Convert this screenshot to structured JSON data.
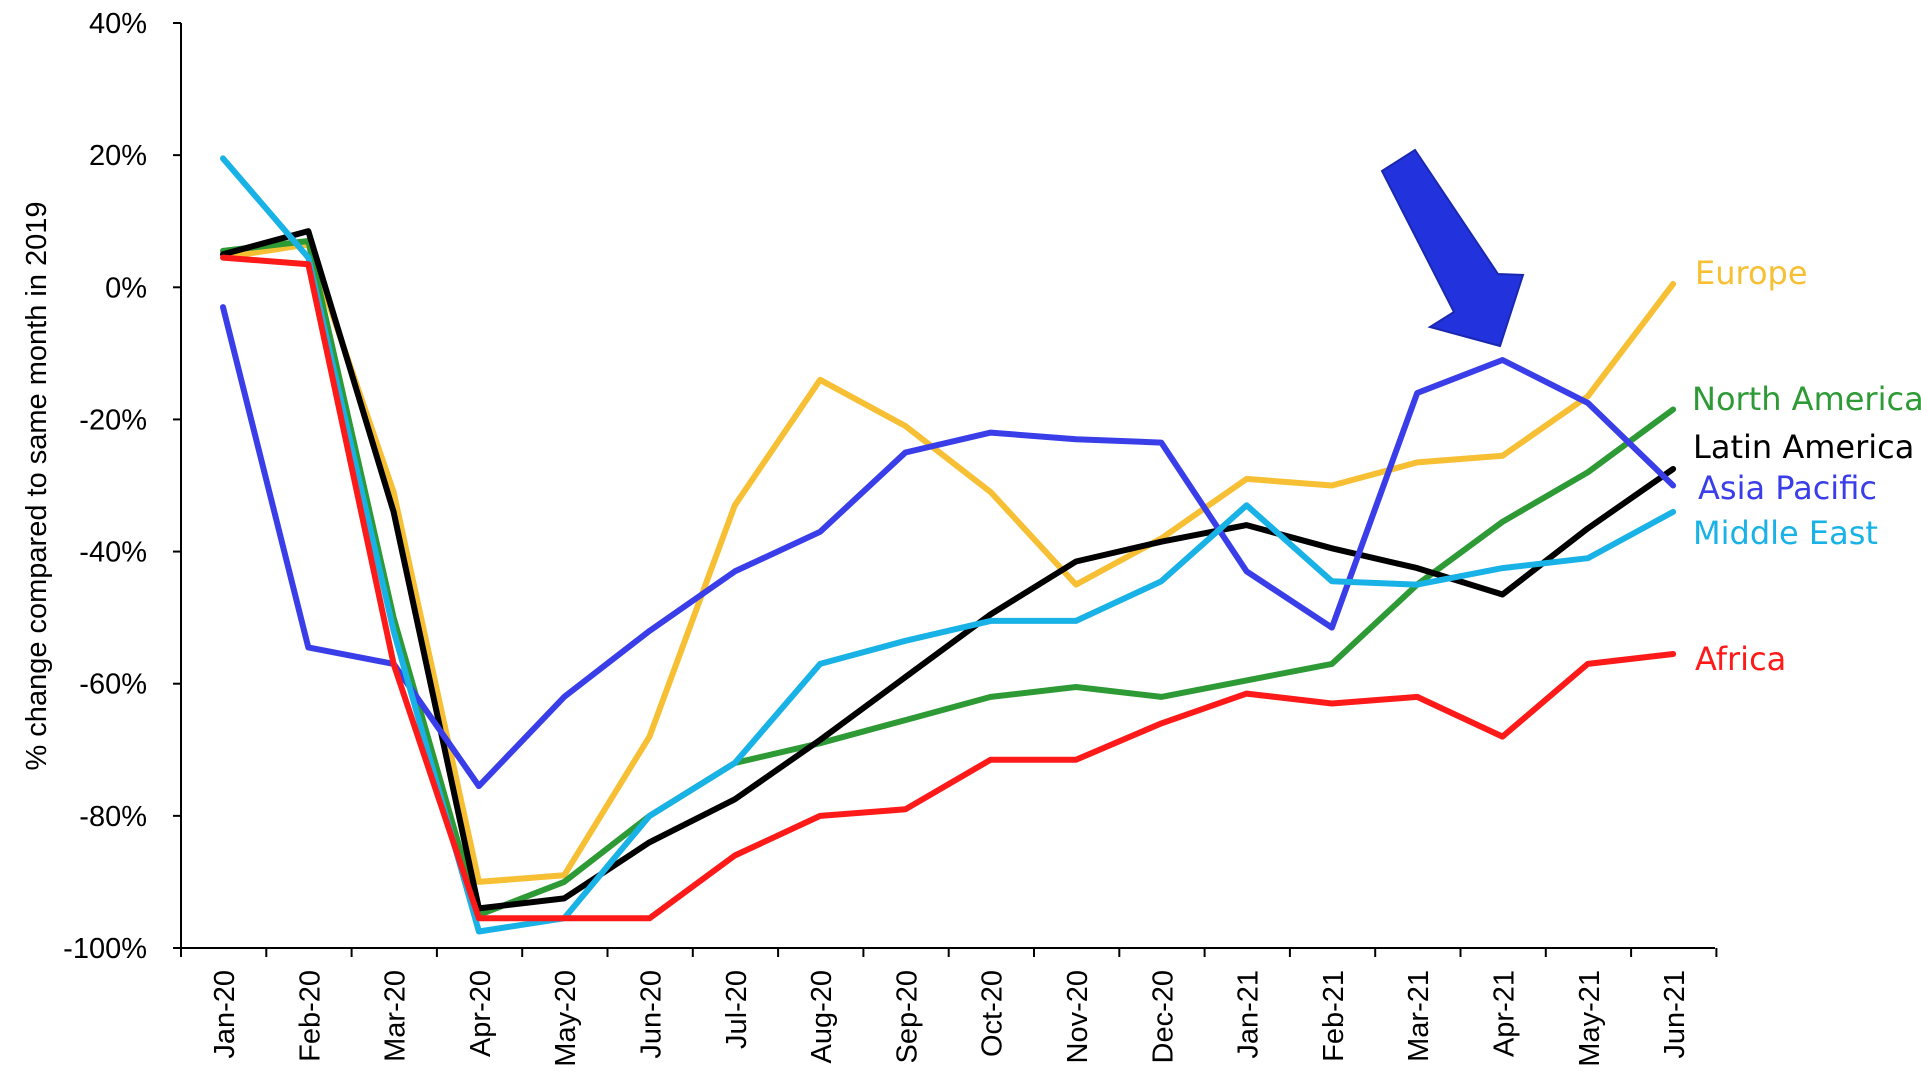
{
  "chart_data": {
    "type": "line",
    "title": "",
    "xlabel": "",
    "ylabel": "% change compared to same month in 2019",
    "ylim": [
      -100,
      40
    ],
    "y_ticks": [
      40,
      20,
      0,
      -20,
      -40,
      -60,
      -80,
      -100
    ],
    "y_tick_labels": [
      "40%",
      "20%",
      "0%",
      "-20%",
      "-40%",
      "-60%",
      "-80%",
      "-100%"
    ],
    "categories": [
      "Jan-20",
      "Feb-20",
      "Mar-20",
      "Apr-20",
      "May-20",
      "Jun-20",
      "Jul-20",
      "Aug-20",
      "Sep-20",
      "Oct-20",
      "Nov-20",
      "Dec-20",
      "Jan-21",
      "Feb-21",
      "Mar-21",
      "Apr-21",
      "May-21",
      "Jun-21"
    ],
    "grid": false,
    "legend": "direct labels at line ends",
    "annotation": {
      "type": "arrow",
      "points_to": "Asia Pacific, Apr-21",
      "color": "#2233dd"
    },
    "series": [
      {
        "name": "Europe",
        "color": "#f7c034",
        "values": [
          4.5,
          6.5,
          -31,
          -90,
          -89,
          -68,
          -33,
          -14,
          -21,
          -31,
          -45,
          -38,
          -29,
          -30,
          -26.5,
          -25.5,
          -16.5,
          0.5
        ]
      },
      {
        "name": "North America",
        "color": "#2e9a35",
        "values": [
          5.5,
          7,
          -50,
          -95,
          -90,
          -80,
          -72,
          -69,
          -65.5,
          -62,
          -60.5,
          -62,
          -59.5,
          -57,
          -45,
          -35.5,
          -28,
          -18.5
        ]
      },
      {
        "name": "Latin America",
        "color": "#000000",
        "values": [
          5,
          8.5,
          -34,
          -94,
          -92.5,
          -84,
          -77.5,
          -68.5,
          -59,
          -49.5,
          -41.5,
          -38.5,
          -36,
          -39.5,
          -42.5,
          -46.5,
          -36.5,
          -27.5
        ]
      },
      {
        "name": "Asia Pacific",
        "color": "#3a3ee8",
        "values": [
          -3,
          -54.5,
          -57,
          -75.5,
          -62,
          -52,
          -43,
          -37,
          -25,
          -22,
          -23,
          -23.5,
          -43,
          -51.5,
          -16,
          -11,
          -17.5,
          -30
        ]
      },
      {
        "name": "Middle East",
        "color": "#19b2e6",
        "values": [
          19.5,
          4.5,
          -52,
          -97.5,
          -95.5,
          -80,
          -72,
          -57,
          -53.5,
          -50.5,
          -50.5,
          -44.5,
          -33,
          -44.5,
          -45,
          -42.5,
          -41,
          -34
        ]
      },
      {
        "name": "Africa",
        "color": "#ff1a1a",
        "values": [
          4.5,
          3.5,
          -57,
          -95.5,
          -95.5,
          -95.5,
          -86,
          -80,
          -79,
          -71.5,
          -71.5,
          -66,
          -61.5,
          -63,
          -62,
          -68,
          -57,
          -55.5
        ]
      }
    ]
  }
}
